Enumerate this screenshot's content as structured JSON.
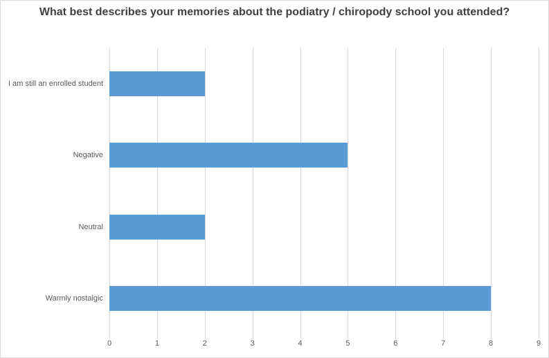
{
  "chart_data": {
    "type": "bar",
    "orientation": "horizontal",
    "title": "What best describes your memories about the podiatry / chiropody school you attended?",
    "categories": [
      "I am still an enrolled student",
      "Negative",
      "Neutral",
      "Warmly nostalgic"
    ],
    "values": [
      2,
      5,
      2,
      8
    ],
    "xlabel": "",
    "ylabel": "",
    "xlim": [
      0,
      9
    ],
    "x_ticks": [
      0,
      1,
      2,
      3,
      4,
      5,
      6,
      7,
      8,
      9
    ],
    "grid": true,
    "legend": false,
    "colors": {
      "bar": "#5b9bd5",
      "gridline": "#d9d9d9",
      "axis_text": "#595959",
      "title_text": "#404040",
      "chart_border": "#d9d9d9",
      "background": "#ffffff"
    }
  }
}
